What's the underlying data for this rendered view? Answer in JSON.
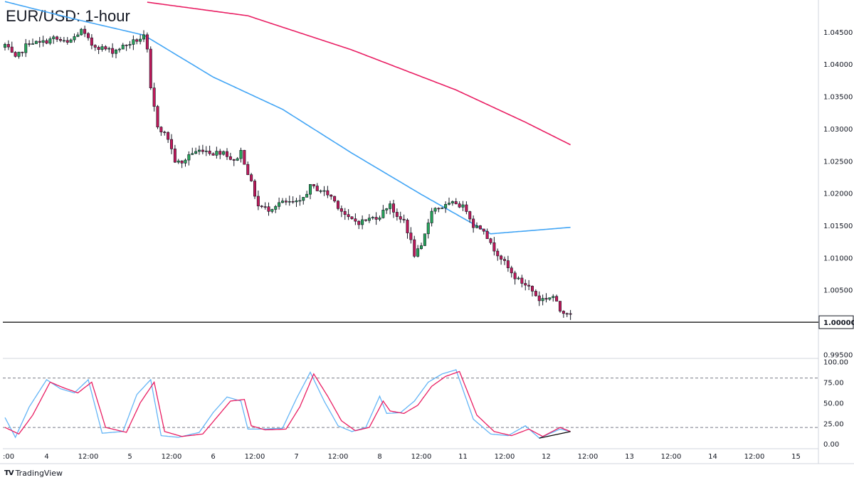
{
  "title": "EUR/USD: 1-hour",
  "brand": {
    "logo": "TV",
    "name": "TradingView"
  },
  "colors": {
    "bull": "#26a65b",
    "bear": "#c2185b",
    "ema_fast": "#42a5f5",
    "ema_slow": "#e91e63",
    "stoch_k": "#64b5f6",
    "stoch_d": "#e91e63",
    "support": "#000000",
    "divergence": "#000000",
    "grid": "#d1d4dc"
  },
  "chart_data": [
    {
      "type": "candlestick",
      "ylim": [
        0.9945,
        1.0495
      ],
      "y_ticks": [
        "1.04500",
        "1.04000",
        "1.03500",
        "1.03000",
        "1.02500",
        "1.02000",
        "1.01500",
        "1.01000",
        "1.00500",
        "0.99500"
      ],
      "y_tick_values": [
        1.045,
        1.04,
        1.035,
        1.03,
        1.025,
        1.02,
        1.015,
        1.01,
        1.005,
        0.995
      ],
      "x_ticks": [
        ":00",
        "4",
        "12:00",
        "5",
        "12:00",
        "6",
        "12:00",
        "7",
        "12:00",
        "8",
        "12:00",
        "11",
        "12:00",
        "12",
        "12:00",
        "13",
        "12:00",
        "14",
        "12:00",
        "15"
      ],
      "x_tick_bars": [
        0,
        12,
        24,
        36,
        48,
        60,
        72,
        84,
        96,
        108,
        120,
        132,
        144,
        156,
        168,
        180,
        192,
        204,
        216,
        228
      ],
      "support_level": {
        "value": 1.0,
        "label": "1.00000"
      },
      "anchor_points": [
        [
          0,
          1.043
        ],
        [
          3,
          1.0408
        ],
        [
          7,
          1.0435
        ],
        [
          10,
          1.0432
        ],
        [
          14,
          1.044
        ],
        [
          18,
          1.0432
        ],
        [
          22,
          1.0452
        ],
        [
          25,
          1.043
        ],
        [
          28,
          1.0425
        ],
        [
          31,
          1.042
        ],
        [
          35,
          1.043
        ],
        [
          40,
          1.0442
        ],
        [
          41,
          1.042
        ],
        [
          42,
          1.036
        ],
        [
          44,
          1.0305
        ],
        [
          47,
          1.0285
        ],
        [
          49,
          1.025
        ],
        [
          51,
          1.0245
        ],
        [
          53,
          1.026
        ],
        [
          57,
          1.0268
        ],
        [
          60,
          1.0262
        ],
        [
          63,
          1.0265
        ],
        [
          66,
          1.0248
        ],
        [
          68,
          1.0265
        ],
        [
          71,
          1.0215
        ],
        [
          73,
          1.018
        ],
        [
          76,
          1.0175
        ],
        [
          79,
          1.0185
        ],
        [
          85,
          1.0185
        ],
        [
          88,
          1.021
        ],
        [
          91,
          1.0205
        ],
        [
          94,
          1.0195
        ],
        [
          96,
          1.018
        ],
        [
          99,
          1.016
        ],
        [
          102,
          1.0155
        ],
        [
          105,
          1.016
        ],
        [
          108,
          1.0165
        ],
        [
          111,
          1.0185
        ],
        [
          113,
          1.016
        ],
        [
          115,
          1.0158
        ],
        [
          117,
          1.0125
        ],
        [
          118,
          1.0105
        ],
        [
          120,
          1.0115
        ],
        [
          123,
          1.0175
        ],
        [
          127,
          1.018
        ],
        [
          130,
          1.0185
        ],
        [
          133,
          1.0175
        ],
        [
          135,
          1.015
        ],
        [
          138,
          1.0145
        ],
        [
          140,
          1.012
        ],
        [
          143,
          1.01
        ],
        [
          146,
          1.0075
        ],
        [
          148,
          1.0065
        ],
        [
          151,
          1.0055
        ],
        [
          154,
          1.0035
        ],
        [
          158,
          1.004
        ],
        [
          160,
          1.0018
        ],
        [
          163,
          1.0015
        ]
      ],
      "series": [
        {
          "name": "",
          "kind": "ema",
          "points": [
            [
              0,
              1.0497
            ],
            [
              20,
              1.047
            ],
            [
              40,
              1.0445
            ],
            [
              60,
              1.038
            ],
            [
              80,
              1.033
            ],
            [
              100,
              1.0262
            ],
            [
              120,
              1.0198
            ],
            [
              140,
              1.0137
            ],
            [
              163,
              1.0147
            ]
          ]
        },
        {
          "name": "",
          "kind": "ema",
          "points": [
            [
              41,
              1.0496
            ],
            [
              70,
              1.0475
            ],
            [
              100,
              1.0422
            ],
            [
              130,
              1.036
            ],
            [
              150,
              1.031
            ],
            [
              163,
              1.0275
            ]
          ]
        }
      ]
    },
    {
      "type": "line",
      "ylim": [
        -5,
        103
      ],
      "y_ticks": [
        "100.00",
        "75.00",
        "50.00",
        "25.00",
        "0.00"
      ],
      "y_tick_values": [
        100,
        75,
        50,
        25,
        0
      ],
      "levels": [
        80,
        20
      ],
      "series": [
        {
          "name": "",
          "points": [
            [
              0,
              32
            ],
            [
              3,
              8
            ],
            [
              7,
              45
            ],
            [
              12,
              78
            ],
            [
              16,
              67
            ],
            [
              20,
              62
            ],
            [
              24,
              78
            ],
            [
              28,
              13
            ],
            [
              34,
              15
            ],
            [
              38,
              60
            ],
            [
              42,
              78
            ],
            [
              45,
              10
            ],
            [
              50,
              8
            ],
            [
              56,
              14
            ],
            [
              60,
              38
            ],
            [
              64,
              57
            ],
            [
              68,
              52
            ],
            [
              70,
              18
            ],
            [
              74,
              18
            ],
            [
              80,
              19
            ],
            [
              84,
              55
            ],
            [
              88,
              87
            ],
            [
              92,
              52
            ],
            [
              96,
              22
            ],
            [
              100,
              15
            ],
            [
              104,
              20
            ],
            [
              108,
              58
            ],
            [
              110,
              37
            ],
            [
              114,
              38
            ],
            [
              118,
              52
            ],
            [
              122,
              75
            ],
            [
              126,
              85
            ],
            [
              130,
              90
            ],
            [
              135,
              30
            ],
            [
              140,
              12
            ],
            [
              145,
              10
            ],
            [
              150,
              22
            ],
            [
              154,
              7
            ],
            [
              160,
              18
            ],
            [
              163,
              15
            ]
          ]
        },
        {
          "name": "",
          "points": [
            [
              0,
              20
            ],
            [
              4,
              12
            ],
            [
              8,
              35
            ],
            [
              13,
              75
            ],
            [
              17,
              68
            ],
            [
              21,
              62
            ],
            [
              25,
              75
            ],
            [
              29,
              20
            ],
            [
              35,
              14
            ],
            [
              39,
              50
            ],
            [
              43,
              75
            ],
            [
              46,
              15
            ],
            [
              51,
              9
            ],
            [
              57,
              12
            ],
            [
              61,
              32
            ],
            [
              65,
              52
            ],
            [
              69,
              54
            ],
            [
              71,
              22
            ],
            [
              75,
              17
            ],
            [
              81,
              18
            ],
            [
              85,
              45
            ],
            [
              89,
              85
            ],
            [
              93,
              58
            ],
            [
              97,
              28
            ],
            [
              101,
              16
            ],
            [
              105,
              20
            ],
            [
              109,
              52
            ],
            [
              111,
              40
            ],
            [
              115,
              37
            ],
            [
              119,
              47
            ],
            [
              123,
              70
            ],
            [
              127,
              82
            ],
            [
              131,
              88
            ],
            [
              136,
              35
            ],
            [
              141,
              15
            ],
            [
              146,
              10
            ],
            [
              151,
              18
            ],
            [
              155,
              9
            ],
            [
              160,
              20
            ],
            [
              163,
              15
            ]
          ]
        }
      ],
      "divergence_line": [
        [
          154,
          7
        ],
        [
          163,
          15
        ]
      ]
    }
  ]
}
